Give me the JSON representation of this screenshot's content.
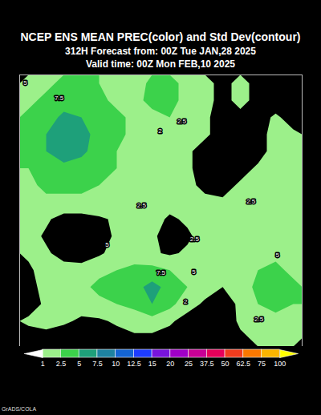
{
  "chart_data": {
    "type": "contour",
    "title": "NCEP ENS MEAN PREC(color) and Std Dev(contour)",
    "subtitle": [
      "312H Forecast from: 00Z Tue JAN,28 2025",
      "Valid time: 00Z Mon FEB,10 2025"
    ],
    "tick_labels": false,
    "xlim": [
      0,
      16
    ],
    "ylim": [
      0,
      16
    ],
    "grid_values": [
      [
        2,
        2,
        3,
        3,
        2.5,
        2,
        1.5,
        3,
        3,
        2,
        1.5,
        0.5,
        1.5,
        0.5,
        0.5,
        0.5
      ],
      [
        2,
        3,
        4,
        4,
        3,
        2,
        2,
        3,
        3,
        2,
        1.5,
        0.5,
        1.5,
        0.5,
        0.3,
        0.3
      ],
      [
        3,
        4,
        5.5,
        5,
        4,
        3,
        2,
        2,
        2.5,
        1.5,
        1.2,
        0.5,
        0.5,
        0.5,
        1.2,
        0.5
      ],
      [
        3,
        5,
        6.5,
        6,
        4,
        3,
        2,
        1.5,
        2,
        1.5,
        1.2,
        0.5,
        0.3,
        0.5,
        1.5,
        1.2
      ],
      [
        3,
        5,
        6,
        5.5,
        4,
        2.5,
        2,
        1.5,
        1.5,
        1.2,
        0.5,
        0.3,
        0.3,
        0.5,
        1.5,
        1.5
      ],
      [
        2.5,
        4,
        4.5,
        4,
        3,
        2.5,
        2,
        1.5,
        1.5,
        1.2,
        0.5,
        0.3,
        0.5,
        1.2,
        1.5,
        1.2
      ],
      [
        2,
        3,
        3,
        3,
        2.5,
        2,
        1.8,
        1.5,
        1.5,
        1.2,
        0.8,
        0.5,
        1.2,
        1.5,
        1.5,
        1.2
      ],
      [
        1.5,
        2,
        2,
        2,
        2,
        1.5,
        1.5,
        1.5,
        1.5,
        1.5,
        1.2,
        1.2,
        1.5,
        1.5,
        1.5,
        1.2
      ],
      [
        1.5,
        1.2,
        0.5,
        0.5,
        0.8,
        1.2,
        1.5,
        1.5,
        0.8,
        1.2,
        1.5,
        1.5,
        1.5,
        1.5,
        1.5,
        1.5
      ],
      [
        1.5,
        0.8,
        0.3,
        0.3,
        0.5,
        1.2,
        1.5,
        1.2,
        0.5,
        0.8,
        1.5,
        1.5,
        1.2,
        1.2,
        1.5,
        1.5
      ],
      [
        1.2,
        1.2,
        0.5,
        0.3,
        0.8,
        1.5,
        1.5,
        1.2,
        0.8,
        1.2,
        1.5,
        1.2,
        1.2,
        1.5,
        2,
        1.5
      ],
      [
        0.8,
        1.5,
        1.5,
        1.5,
        2,
        2.5,
        3,
        3,
        2.5,
        2,
        1.5,
        1.2,
        1.5,
        2.5,
        3,
        2
      ],
      [
        0.5,
        1.5,
        1.5,
        2,
        3,
        3.5,
        4,
        6,
        4,
        2.5,
        1.5,
        1,
        1.5,
        3,
        4,
        3
      ],
      [
        0.5,
        1.2,
        1.5,
        1.5,
        2,
        2.5,
        3,
        5,
        3,
        1.5,
        0.8,
        0.5,
        1.2,
        2.5,
        3,
        2.5
      ],
      [
        1.2,
        1.5,
        1.2,
        0.8,
        0.8,
        1.2,
        1.5,
        1.5,
        1.2,
        0.5,
        0.3,
        0.3,
        1.2,
        1.5,
        2,
        1.5
      ],
      [
        0.5,
        0.5,
        0.3,
        0.3,
        0.3,
        0.5,
        0.8,
        0.8,
        0.5,
        0.3,
        0.3,
        0.3,
        0.8,
        1.2,
        1.5,
        1.2
      ]
    ],
    "contour_labels": [
      {
        "value": 5,
        "x": 0.32,
        "y": 0.47
      },
      {
        "value": 7.5,
        "x": 2.23,
        "y": 1.37
      },
      {
        "value": 2,
        "x": 7.95,
        "y": 3.3
      },
      {
        "value": 2.5,
        "x": 9.18,
        "y": 2.74
      },
      {
        "value": 2.5,
        "x": 6.9,
        "y": 7.7
      },
      {
        "value": 2.5,
        "x": 13.1,
        "y": 7.45
      },
      {
        "value": 2.5,
        "x": 9.9,
        "y": 9.67
      },
      {
        "value": 5,
        "x": 4.95,
        "y": 10.0
      },
      {
        "value": 7.5,
        "x": 8.0,
        "y": 11.65
      },
      {
        "value": 5,
        "x": 9.86,
        "y": 11.6
      },
      {
        "value": 5,
        "x": 14.6,
        "y": 10.6
      },
      {
        "value": 2,
        "x": 9.4,
        "y": 13.35
      },
      {
        "value": 2.5,
        "x": 13.55,
        "y": 14.4
      }
    ],
    "colorbar": {
      "ticks": [
        1,
        2.5,
        5,
        7.5,
        10,
        12.5,
        15,
        20,
        25,
        37.5,
        50,
        62.5,
        75,
        100
      ],
      "colors": [
        "#ffffff",
        "#9cf08a",
        "#3cd24b",
        "#1ea07a",
        "#1e82a0",
        "#1464d2",
        "#1e3cff",
        "#7814dc",
        "#a000c8",
        "#c80096",
        "#e6005a",
        "#f03c1e",
        "#fa7800",
        "#fab400",
        "#ffff00"
      ]
    },
    "credit": "GrADS/COLA"
  }
}
